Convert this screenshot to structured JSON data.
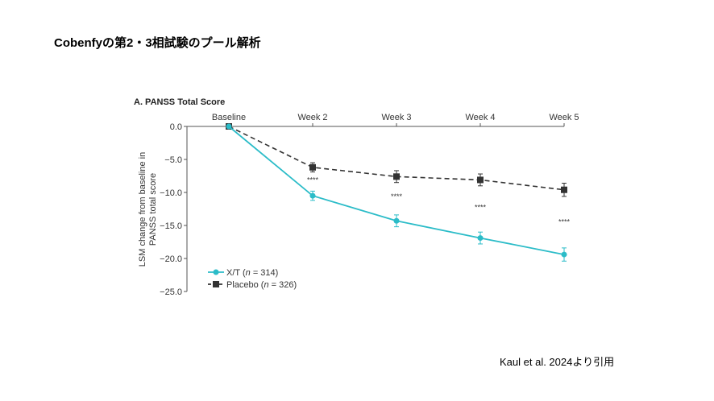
{
  "slide": {
    "title": "Cobenfyの第2・3相試験のプール解析",
    "citation": "Kaul et al. 2024より引用"
  },
  "chart_data": {
    "type": "line",
    "title": "A. PANSS Total Score",
    "ylabel_lines": [
      "LSM change from baseline in",
      "PANSS total score"
    ],
    "categories": [
      "Baseline",
      "Week 2",
      "Week 3",
      "Week 4",
      "Week 5"
    ],
    "ylim": [
      -25,
      0
    ],
    "yticks": [
      0,
      -5,
      -10,
      -15,
      -20,
      -25
    ],
    "ytick_labels": [
      "0.0",
      "−5.0",
      "−10.0",
      "−15.0",
      "−20.0",
      "−25.0"
    ],
    "x_axis_position": "top",
    "grid": false,
    "legend_placement": "bottom-left",
    "series": [
      {
        "name": "X/T",
        "n_label": "314",
        "color": "#2bbcc8",
        "marker": "circle",
        "line": "solid",
        "values": [
          0,
          -10.5,
          -14.3,
          -16.9,
          -19.4
        ],
        "errors": [
          0,
          0.7,
          0.9,
          0.9,
          1.0
        ]
      },
      {
        "name": "Placebo",
        "n_label": "326",
        "color": "#333333",
        "marker": "square",
        "line": "dashed",
        "values": [
          0,
          -6.2,
          -7.6,
          -8.1,
          -9.6
        ],
        "errors": [
          0,
          0.7,
          0.9,
          0.9,
          1.0
        ]
      }
    ],
    "annotations": [
      {
        "category": "Week 2",
        "text": "****",
        "y": -8.5
      },
      {
        "category": "Week 3",
        "text": "****",
        "y": -11.0
      },
      {
        "category": "Week 4",
        "text": "****",
        "y": -12.6
      },
      {
        "category": "Week 5",
        "text": "****",
        "y": -14.8
      }
    ]
  }
}
